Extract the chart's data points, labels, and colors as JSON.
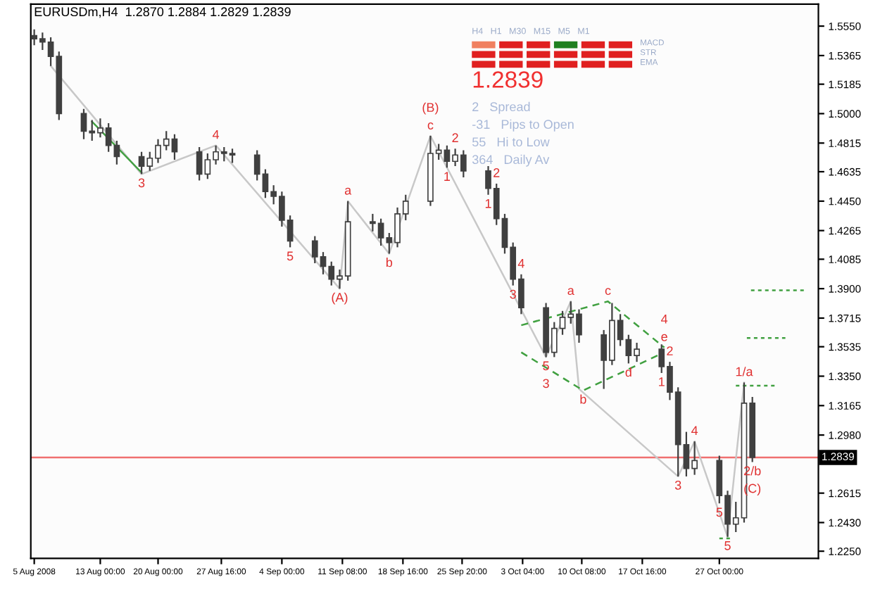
{
  "chart_data": {
    "type": "candlestick",
    "title": "EURUSDm,H4  1.2870 1.2884 1.2829 1.2839",
    "xlim": [
      "2008-08-04T14:00",
      "2008-11-08T00:00"
    ],
    "xticks": [
      {
        "value": "2008-08-05T00:00",
        "label": "5 Aug 2008"
      },
      {
        "value": "2008-08-13T00:00",
        "label": "13 Aug 00:00"
      },
      {
        "value": "2008-08-20T00:00",
        "label": "20 Aug 00:00"
      },
      {
        "value": "2008-08-27T16:00",
        "label": "27 Aug 16:00"
      },
      {
        "value": "2008-09-04T00:00",
        "label": "4 Sep 00:00"
      },
      {
        "value": "2008-09-11T08:00",
        "label": "11 Sep 08:00"
      },
      {
        "value": "2008-09-18T16:00",
        "label": "18 Sep 16:00"
      },
      {
        "value": "2008-09-25T20:00",
        "label": "25 Sep 20:00"
      },
      {
        "value": "2008-10-03T04:00",
        "label": "3 Oct 04:00"
      },
      {
        "value": "2008-10-10T08:00",
        "label": "10 Oct 08:00"
      },
      {
        "value": "2008-10-17T16:00",
        "label": "17 Oct 16:00"
      },
      {
        "value": "2008-10-27T00:00",
        "label": "27 Oct 00:00"
      }
    ],
    "ylim": [
      1.2205,
      1.5688
    ],
    "yticks": [
      {
        "value": 1.555,
        "label": "1.5550"
      },
      {
        "value": 1.5365,
        "label": "1.5365"
      },
      {
        "value": 1.5185,
        "label": "1.5185"
      },
      {
        "value": 1.5,
        "label": "1.5000"
      },
      {
        "value": 1.4815,
        "label": "1.4815"
      },
      {
        "value": 1.4635,
        "label": "1.4635"
      },
      {
        "value": 1.445,
        "label": "1.4450"
      },
      {
        "value": 1.4265,
        "label": "1.4265"
      },
      {
        "value": 1.4085,
        "label": "1.4085"
      },
      {
        "value": 1.39,
        "label": "1.3900"
      },
      {
        "value": 1.3715,
        "label": "1.3715"
      },
      {
        "value": 1.3535,
        "label": "1.3535"
      },
      {
        "value": 1.335,
        "label": "1.3350"
      },
      {
        "value": 1.3165,
        "label": "1.3165"
      },
      {
        "value": 1.298,
        "label": "1.2980"
      },
      {
        "value": 1.2615,
        "label": "1.2615"
      },
      {
        "value": 1.243,
        "label": "1.2430"
      },
      {
        "value": 1.225,
        "label": "1.2250"
      }
    ],
    "ref_lines": [
      {
        "axis": "y",
        "value": 1.2839,
        "label": "1.2839",
        "color": "#f07070"
      }
    ],
    "series": [
      {
        "color": "#404040",
        "x": [
          "2008-08-05",
          "2008-08-06",
          "2008-08-07",
          "2008-08-08",
          "2008-08-11",
          "2008-08-12",
          "2008-08-13",
          "2008-08-14",
          "2008-08-15",
          "2008-08-18",
          "2008-08-19",
          "2008-08-20",
          "2008-08-21",
          "2008-08-22",
          "2008-08-25",
          "2008-08-26",
          "2008-08-27",
          "2008-08-28",
          "2008-08-29",
          "2008-09-01",
          "2008-09-02",
          "2008-09-03",
          "2008-09-04",
          "2008-09-05",
          "2008-09-08",
          "2008-09-09",
          "2008-09-10",
          "2008-09-11",
          "2008-09-12",
          "2008-09-15",
          "2008-09-16",
          "2008-09-17",
          "2008-09-18",
          "2008-09-19",
          "2008-09-22",
          "2008-09-23",
          "2008-09-24",
          "2008-09-25",
          "2008-09-26",
          "2008-09-29",
          "2008-09-30",
          "2008-10-01",
          "2008-10-02",
          "2008-10-03",
          "2008-10-06",
          "2008-10-07",
          "2008-10-08",
          "2008-10-09",
          "2008-10-10",
          "2008-10-13",
          "2008-10-14",
          "2008-10-15",
          "2008-10-16",
          "2008-10-17",
          "2008-10-20",
          "2008-10-21",
          "2008-10-22",
          "2008-10-23",
          "2008-10-24",
          "2008-10-27",
          "2008-10-28",
          "2008-10-29",
          "2008-10-30",
          "2008-10-31"
        ],
        "ohlc": [
          [
            1.549,
            1.553,
            1.543,
            1.547
          ],
          [
            1.547,
            1.551,
            1.54,
            1.545
          ],
          [
            1.545,
            1.548,
            1.53,
            1.536
          ],
          [
            1.536,
            1.539,
            1.496,
            1.5
          ],
          [
            1.5,
            1.503,
            1.484,
            1.489
          ],
          [
            1.489,
            1.496,
            1.483,
            1.488
          ],
          [
            1.488,
            1.497,
            1.485,
            1.491
          ],
          [
            1.491,
            1.494,
            1.476,
            1.48
          ],
          [
            1.48,
            1.483,
            1.468,
            1.473
          ],
          [
            1.473,
            1.476,
            1.462,
            1.467
          ],
          [
            1.467,
            1.476,
            1.464,
            1.472
          ],
          [
            1.472,
            1.484,
            1.469,
            1.48
          ],
          [
            1.48,
            1.489,
            1.477,
            1.484
          ],
          [
            1.484,
            1.487,
            1.471,
            1.476
          ],
          [
            1.476,
            1.479,
            1.458,
            1.462
          ],
          [
            1.462,
            1.475,
            1.459,
            1.471
          ],
          [
            1.471,
            1.48,
            1.468,
            1.476
          ],
          [
            1.476,
            1.479,
            1.47,
            1.475
          ],
          [
            1.475,
            1.478,
            1.469,
            1.474
          ],
          [
            1.474,
            1.477,
            1.458,
            1.462
          ],
          [
            1.462,
            1.465,
            1.447,
            1.451
          ],
          [
            1.451,
            1.455,
            1.443,
            1.448
          ],
          [
            1.448,
            1.451,
            1.429,
            1.433
          ],
          [
            1.433,
            1.436,
            1.416,
            1.42
          ],
          [
            1.42,
            1.423,
            1.406,
            1.41
          ],
          [
            1.41,
            1.413,
            1.399,
            1.404
          ],
          [
            1.404,
            1.407,
            1.392,
            1.396
          ],
          [
            1.396,
            1.402,
            1.39,
            1.398
          ],
          [
            1.398,
            1.445,
            1.395,
            1.432
          ],
          [
            1.432,
            1.437,
            1.426,
            1.431
          ],
          [
            1.431,
            1.434,
            1.417,
            1.422
          ],
          [
            1.422,
            1.425,
            1.412,
            1.419
          ],
          [
            1.419,
            1.441,
            1.416,
            1.437
          ],
          [
            1.437,
            1.449,
            1.433,
            1.445
          ],
          [
            1.445,
            1.486,
            1.442,
            1.475
          ],
          [
            1.475,
            1.481,
            1.471,
            1.477
          ],
          [
            1.477,
            1.48,
            1.466,
            1.47
          ],
          [
            1.47,
            1.478,
            1.467,
            1.474
          ],
          [
            1.474,
            1.477,
            1.46,
            1.464
          ],
          [
            1.464,
            1.467,
            1.449,
            1.453
          ],
          [
            1.453,
            1.456,
            1.43,
            1.434
          ],
          [
            1.434,
            1.437,
            1.412,
            1.416
          ],
          [
            1.416,
            1.419,
            1.392,
            1.396
          ],
          [
            1.396,
            1.399,
            1.374,
            1.378
          ],
          [
            1.378,
            1.381,
            1.347,
            1.35
          ],
          [
            1.35,
            1.369,
            1.347,
            1.365
          ],
          [
            1.365,
            1.376,
            1.361,
            1.372
          ],
          [
            1.372,
            1.382,
            1.368,
            1.374
          ],
          [
            1.374,
            1.377,
            1.356,
            1.361
          ],
          [
            1.361,
            1.364,
            1.327,
            1.345
          ],
          [
            1.345,
            1.381,
            1.342,
            1.37
          ],
          [
            1.37,
            1.374,
            1.354,
            1.358
          ],
          [
            1.358,
            1.361,
            1.343,
            1.348
          ],
          [
            1.348,
            1.356,
            1.344,
            1.352
          ],
          [
            1.352,
            1.355,
            1.337,
            1.341
          ],
          [
            1.341,
            1.344,
            1.32,
            1.325
          ],
          [
            1.325,
            1.328,
            1.272,
            1.292
          ],
          [
            1.292,
            1.3,
            1.272,
            1.277
          ],
          [
            1.277,
            1.294,
            1.273,
            1.282
          ],
          [
            1.282,
            1.285,
            1.255,
            1.26
          ],
          [
            1.26,
            1.263,
            1.234,
            1.242
          ],
          [
            1.242,
            1.256,
            1.237,
            1.246
          ],
          [
            1.246,
            1.331,
            1.243,
            1.318
          ],
          [
            1.318,
            1.322,
            1.281,
            1.2839
          ]
        ]
      },
      {
        "type": "line",
        "color": "#c8c8c8",
        "line_style": "solid",
        "x": [
          "2008-08-07",
          "2008-08-18",
          "2008-08-27",
          "2008-09-11",
          "2008-09-12",
          "2008-09-17",
          "2008-09-22",
          "2008-10-06",
          "2008-10-09",
          "2008-10-10",
          "2008-10-22",
          "2008-10-24",
          "2008-10-28",
          "2008-10-30"
        ],
        "values": [
          1.53,
          1.462,
          1.48,
          1.39,
          1.445,
          1.412,
          1.486,
          1.347,
          1.382,
          1.327,
          1.272,
          1.294,
          1.234,
          1.331
        ]
      },
      {
        "type": "line",
        "color": "#40a040",
        "line_style": "solid",
        "x": [
          "2008-08-12",
          "2008-08-18"
        ],
        "values": [
          1.495,
          1.463
        ]
      },
      {
        "type": "line",
        "color": "#40a040",
        "line_style": "dashed",
        "x": [
          "2008-10-03",
          "2008-10-13T12:00",
          "2008-10-20T08:00"
        ],
        "values": [
          1.367,
          1.382,
          1.353
        ]
      },
      {
        "type": "line",
        "color": "#40a040",
        "line_style": "dashed",
        "x": [
          "2008-10-03",
          "2008-10-10T12:00",
          "2008-10-20T08:00"
        ],
        "values": [
          1.35,
          1.326,
          1.35
        ]
      },
      {
        "type": "line",
        "color": "#40a040",
        "line_style": "dotted",
        "x": [
          "2008-10-30T20:00",
          "2008-11-06T12:00"
        ],
        "values": [
          1.389,
          1.389
        ]
      },
      {
        "type": "line",
        "color": "#40a040",
        "line_style": "dotted",
        "x": [
          "2008-10-30T08:00",
          "2008-11-04T00:00"
        ],
        "values": [
          1.359,
          1.359
        ]
      },
      {
        "type": "line",
        "color": "#40a040",
        "line_style": "dotted",
        "x": [
          "2008-10-29T00:00",
          "2008-11-03T00:00"
        ],
        "values": [
          1.329,
          1.329
        ]
      },
      {
        "type": "line",
        "color": "#40a040",
        "line_style": "dotted",
        "x": [
          "2008-10-27T00:00",
          "2008-10-28T08:00"
        ],
        "values": [
          1.233,
          1.233
        ]
      }
    ],
    "annotations": [
      {
        "text": "c",
        "x": "2008-09-22",
        "y": 1.486
      },
      {
        "text": "(B)",
        "x": "2008-09-22",
        "y": 1.486
      },
      {
        "text": "2",
        "x": "2008-09-25",
        "y": 1.478
      },
      {
        "text": "1",
        "x": "2008-09-24",
        "y": 1.466
      },
      {
        "text": "2",
        "x": "2008-09-30",
        "y": 1.456
      },
      {
        "text": "1",
        "x": "2008-09-29",
        "y": 1.449
      },
      {
        "text": "4",
        "x": "2008-08-27",
        "y": 1.48
      },
      {
        "text": "3",
        "x": "2008-08-18",
        "y": 1.462
      },
      {
        "text": "a",
        "x": "2008-09-12",
        "y": 1.445
      },
      {
        "text": "b",
        "x": "2008-09-17",
        "y": 1.412
      },
      {
        "text": "5",
        "x": "2008-09-05",
        "y": 1.416
      },
      {
        "text": "(A)",
        "x": "2008-09-11",
        "y": 1.39
      },
      {
        "text": "4",
        "x": "2008-10-03",
        "y": 1.399
      },
      {
        "text": "3",
        "x": "2008-10-02",
        "y": 1.392
      },
      {
        "text": "a",
        "x": "2008-10-09",
        "y": 1.382
      },
      {
        "text": "c",
        "x": "2008-10-13T12:00",
        "y": 1.382
      },
      {
        "text": "e",
        "x": "2008-10-20T08:00",
        "y": 1.353
      },
      {
        "text": "4",
        "x": "2008-10-20T08:00",
        "y": 1.353
      },
      {
        "text": "b",
        "x": "2008-10-10T12:00",
        "y": 1.326
      },
      {
        "text": "d",
        "x": "2008-10-16",
        "y": 1.343
      },
      {
        "text": "5",
        "x": "2008-10-06",
        "y": 1.347
      },
      {
        "text": "3",
        "x": "2008-10-06",
        "y": 1.347
      },
      {
        "text": "2",
        "x": "2008-10-21",
        "y": 1.344
      },
      {
        "text": "1",
        "x": "2008-10-20",
        "y": 1.337
      },
      {
        "text": "4",
        "x": "2008-10-24",
        "y": 1.294
      },
      {
        "text": "3",
        "x": "2008-10-22",
        "y": 1.272
      },
      {
        "text": "5",
        "x": "2008-10-27",
        "y": 1.255
      },
      {
        "text": "5",
        "x": "2008-10-28",
        "y": 1.234
      },
      {
        "text": "1/a",
        "x": "2008-10-30",
        "y": 1.331
      },
      {
        "text": "2/b",
        "x": "2008-10-31",
        "y": 1.281
      },
      {
        "text": "(C)",
        "x": "2008-10-31",
        "y": 1.281
      },
      "H4   H1   M30   M15   M5   M1",
      "MACD",
      "STR",
      "EMA",
      "1.2839",
      "2   Spread",
      "-31   Pips to Open",
      "55   Hi to Low",
      "364   Daily Av"
    ]
  }
}
